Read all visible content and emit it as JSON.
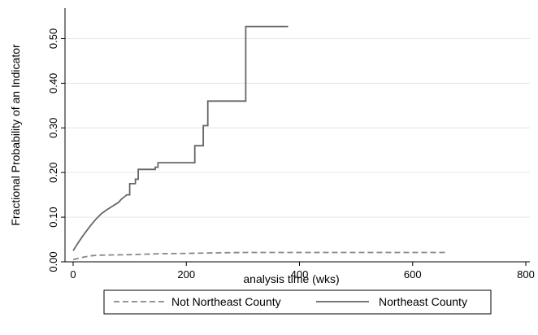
{
  "chart_data": {
    "type": "line",
    "title": "",
    "xlabel": "analysis time (wks)",
    "ylabel": "Fractional Probability of an Indicator",
    "xlim": [
      0,
      800
    ],
    "ylim": [
      0,
      0.55
    ],
    "x_ticks": [
      0,
      200,
      400,
      600,
      800
    ],
    "y_ticks": [
      0.0,
      0.1,
      0.2,
      0.3,
      0.4,
      0.5
    ],
    "y_tick_labels": [
      "0.00",
      "0.10",
      "0.20",
      "0.30",
      "0.40",
      "0.50"
    ],
    "grid": "horizontal",
    "legend_position": "bottom",
    "series": [
      {
        "name": "Not Northeast County",
        "style": "dashed",
        "color": "#888888",
        "points": [
          [
            0,
            0.005
          ],
          [
            10,
            0.008
          ],
          [
            20,
            0.011
          ],
          [
            35,
            0.014
          ],
          [
            50,
            0.015
          ],
          [
            100,
            0.016
          ],
          [
            150,
            0.018
          ],
          [
            200,
            0.019
          ],
          [
            250,
            0.02
          ],
          [
            300,
            0.021
          ],
          [
            400,
            0.021
          ],
          [
            500,
            0.021
          ],
          [
            600,
            0.021
          ],
          [
            660,
            0.021
          ]
        ]
      },
      {
        "name": "Northeast County",
        "style": "solid",
        "color": "#666666",
        "points": [
          [
            0,
            0.025
          ],
          [
            10,
            0.045
          ],
          [
            20,
            0.063
          ],
          [
            30,
            0.08
          ],
          [
            40,
            0.095
          ],
          [
            50,
            0.108
          ],
          [
            60,
            0.117
          ],
          [
            70,
            0.125
          ],
          [
            80,
            0.133
          ],
          [
            85,
            0.14
          ],
          [
            95,
            0.15
          ],
          [
            100,
            0.15
          ],
          [
            100,
            0.175
          ],
          [
            110,
            0.175
          ],
          [
            110,
            0.185
          ],
          [
            115,
            0.185
          ],
          [
            115,
            0.207
          ],
          [
            145,
            0.207
          ],
          [
            145,
            0.212
          ],
          [
            150,
            0.212
          ],
          [
            150,
            0.222
          ],
          [
            215,
            0.222
          ],
          [
            215,
            0.26
          ],
          [
            230,
            0.26
          ],
          [
            230,
            0.305
          ],
          [
            238,
            0.305
          ],
          [
            238,
            0.36
          ],
          [
            305,
            0.36
          ],
          [
            305,
            0.527
          ],
          [
            380,
            0.527
          ]
        ]
      }
    ]
  },
  "legend": {
    "items": [
      {
        "label": "Not Northeast County"
      },
      {
        "label": "Northeast County"
      }
    ]
  },
  "colors": {
    "axis": "#000000",
    "grid": "#e6e6e6",
    "legend_border": "#000000"
  }
}
